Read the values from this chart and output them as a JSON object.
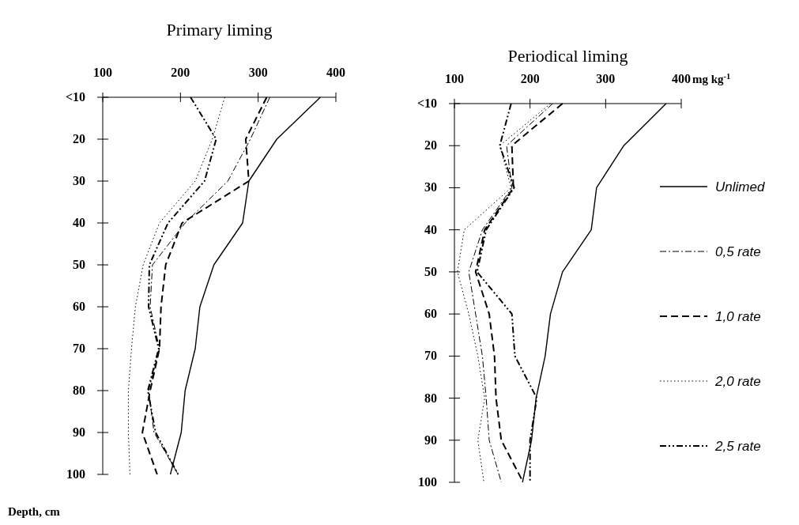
{
  "chart_data": [
    {
      "type": "line",
      "title": "Primary liming",
      "ylabel": "Depth, cm",
      "orientation": "horizontal",
      "categories": [
        "<10",
        "20",
        "30",
        "40",
        "50",
        "60",
        "70",
        "80",
        "90",
        "100"
      ],
      "xlim": [
        100,
        400
      ],
      "xticks": [
        100,
        200,
        300,
        400
      ],
      "legend": false,
      "series": [
        {
          "color": "#000000",
          "line_style": "solid",
          "values": [
            380,
            324,
            288,
            280,
            243,
            225,
            219,
            206,
            201,
            187
          ]
        },
        {
          "color": "#000000",
          "line_style": "dashdot",
          "values": [
            315,
            290,
            261,
            206,
            164,
            161,
            173,
            159,
            166,
            197
          ]
        },
        {
          "color": "#000000",
          "line_style": "dashed",
          "values": [
            311,
            284,
            288,
            202,
            181,
            175,
            173,
            161,
            151,
            170
          ]
        },
        {
          "color": "#000000",
          "line_style": "dotted",
          "values": [
            257,
            241,
            219,
            173,
            152,
            142,
            137,
            133,
            133,
            135
          ]
        },
        {
          "color": "#000000",
          "line_style": "dashdotdot",
          "values": [
            213,
            246,
            231,
            184,
            160,
            159,
            172,
            158,
            168,
            197
          ]
        }
      ]
    },
    {
      "type": "line",
      "title": "Periodical liming",
      "xlabel": "mg kg$^{-1}$",
      "orientation": "horizontal",
      "categories": [
        "<10",
        "20",
        "30",
        "40",
        "50",
        "60",
        "70",
        "80",
        "90",
        "100"
      ],
      "xlim": [
        100,
        400
      ],
      "xticks": [
        100,
        200,
        300,
        400
      ],
      "legend": "right",
      "series": [
        {
          "name": "Unlimed",
          "color": "#000000",
          "line_style": "solid",
          "values": [
            380,
            324,
            288,
            281,
            243,
            227,
            220,
            208,
            202,
            190
          ]
        },
        {
          "name": "0,5 rate",
          "color": "#000000",
          "line_style": "dashdot",
          "values": [
            230,
            169,
            176,
            137,
            119,
            128,
            137,
            142,
            146,
            162
          ]
        },
        {
          "name": "1,0 rate",
          "color": "#000000",
          "line_style": "dashed",
          "values": [
            243,
            176,
            178,
            140,
            128,
            146,
            153,
            155,
            162,
            191
          ]
        },
        {
          "name": "2,0 rate",
          "color": "#000000",
          "line_style": "dotted",
          "values": [
            227,
            160,
            175,
            113,
            104,
            119,
            131,
            140,
            131,
            139
          ]
        },
        {
          "name": "2,5 rate",
          "color": "#000000",
          "line_style": "dashdotdot",
          "values": [
            175,
            160,
            179,
            142,
            130,
            176,
            180,
            209,
            200,
            200
          ]
        }
      ]
    }
  ]
}
